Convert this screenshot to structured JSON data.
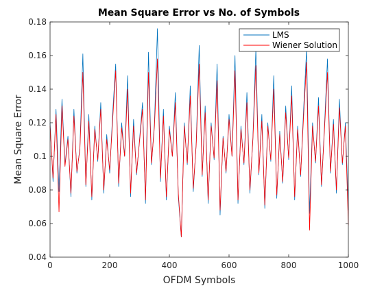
{
  "chart_data": {
    "type": "line",
    "title": "Mean Square Error vs No. of Symbols",
    "xlabel": "OFDM Symbols",
    "ylabel": "Mean Square Error",
    "xlim": [
      0,
      1000
    ],
    "ylim": [
      0.04,
      0.18
    ],
    "xticks": [
      0,
      200,
      400,
      600,
      800,
      1000
    ],
    "yticks": [
      0.04,
      0.06,
      0.08,
      0.1,
      0.12,
      0.14,
      0.16,
      0.18
    ],
    "xtick_labels": [
      "0",
      "200",
      "400",
      "600",
      "800",
      "1000"
    ],
    "ytick_labels": [
      "0.04",
      "0.06",
      "0.08",
      "0.1",
      "0.12",
      "0.14",
      "0.16",
      "0.18"
    ],
    "grid": false,
    "legend_position": "top-right",
    "series": [
      {
        "name": "LMS",
        "color": "#0072BD",
        "x": [
          0,
          10,
          20,
          30,
          40,
          50,
          60,
          70,
          80,
          90,
          100,
          110,
          120,
          130,
          140,
          150,
          160,
          170,
          180,
          190,
          200,
          210,
          220,
          230,
          240,
          250,
          260,
          270,
          280,
          290,
          300,
          310,
          320,
          330,
          340,
          350,
          360,
          370,
          380,
          390,
          400,
          410,
          420,
          430,
          440,
          450,
          460,
          470,
          480,
          490,
          500,
          510,
          520,
          530,
          540,
          550,
          560,
          570,
          580,
          590,
          600,
          610,
          620,
          630,
          640,
          650,
          660,
          670,
          680,
          690,
          700,
          710,
          720,
          730,
          740,
          750,
          760,
          770,
          780,
          790,
          800,
          810,
          820,
          830,
          840,
          850,
          860,
          870,
          880,
          890,
          900,
          910,
          920,
          930,
          940,
          950,
          960,
          970,
          980,
          990,
          1000
        ],
        "values": [
          0.12,
          0.085,
          0.128,
          0.079,
          0.134,
          0.095,
          0.112,
          0.076,
          0.128,
          0.09,
          0.105,
          0.161,
          0.082,
          0.125,
          0.074,
          0.118,
          0.097,
          0.132,
          0.078,
          0.113,
          0.09,
          0.126,
          0.155,
          0.082,
          0.12,
          0.1,
          0.148,
          0.076,
          0.122,
          0.089,
          0.11,
          0.132,
          0.072,
          0.162,
          0.095,
          0.12,
          0.176,
          0.085,
          0.128,
          0.074,
          0.118,
          0.1,
          0.138,
          0.076,
          0.052,
          0.12,
          0.095,
          0.142,
          0.079,
          0.108,
          0.166,
          0.088,
          0.13,
          0.072,
          0.12,
          0.098,
          0.155,
          0.065,
          0.112,
          0.09,
          0.125,
          0.1,
          0.16,
          0.072,
          0.118,
          0.095,
          0.138,
          0.078,
          0.111,
          0.164,
          0.089,
          0.125,
          0.069,
          0.12,
          0.097,
          0.148,
          0.075,
          0.115,
          0.084,
          0.13,
          0.098,
          0.142,
          0.074,
          0.118,
          0.088,
          0.128,
          0.164,
          0.066,
          0.12,
          0.096,
          0.135,
          0.082,
          0.118,
          0.158,
          0.09,
          0.122,
          0.078,
          0.134,
          0.095,
          0.12,
          0.068
        ]
      },
      {
        "name": "Wiener Solution",
        "color": "#FF0000",
        "x": [
          0,
          10,
          20,
          30,
          40,
          50,
          60,
          70,
          80,
          90,
          100,
          110,
          120,
          130,
          140,
          150,
          160,
          170,
          180,
          190,
          200,
          210,
          220,
          230,
          240,
          250,
          260,
          270,
          280,
          290,
          300,
          310,
          320,
          330,
          340,
          350,
          360,
          370,
          380,
          390,
          400,
          410,
          420,
          430,
          440,
          450,
          460,
          470,
          480,
          490,
          500,
          510,
          520,
          530,
          540,
          550,
          560,
          570,
          580,
          590,
          600,
          610,
          620,
          630,
          640,
          650,
          660,
          670,
          680,
          690,
          700,
          710,
          720,
          730,
          740,
          750,
          760,
          770,
          780,
          790,
          800,
          810,
          820,
          830,
          840,
          850,
          860,
          870,
          880,
          890,
          900,
          910,
          920,
          930,
          940,
          950,
          960,
          970,
          980,
          990,
          1000
        ],
        "values": [
          0.118,
          0.087,
          0.125,
          0.067,
          0.13,
          0.094,
          0.11,
          0.078,
          0.124,
          0.091,
          0.104,
          0.15,
          0.083,
          0.121,
          0.076,
          0.116,
          0.098,
          0.128,
          0.08,
          0.11,
          0.092,
          0.122,
          0.151,
          0.084,
          0.117,
          0.1,
          0.14,
          0.078,
          0.118,
          0.09,
          0.109,
          0.128,
          0.074,
          0.15,
          0.096,
          0.118,
          0.158,
          0.087,
          0.124,
          0.076,
          0.116,
          0.1,
          0.132,
          0.078,
          0.052,
          0.118,
          0.096,
          0.136,
          0.081,
          0.107,
          0.155,
          0.089,
          0.126,
          0.074,
          0.118,
          0.099,
          0.145,
          0.068,
          0.111,
          0.091,
          0.122,
          0.1,
          0.151,
          0.074,
          0.116,
          0.096,
          0.132,
          0.08,
          0.11,
          0.154,
          0.09,
          0.121,
          0.071,
          0.118,
          0.098,
          0.14,
          0.077,
          0.113,
          0.085,
          0.126,
          0.099,
          0.136,
          0.076,
          0.116,
          0.089,
          0.124,
          0.156,
          0.056,
          0.118,
          0.097,
          0.13,
          0.083,
          0.116,
          0.15,
          0.091,
          0.119,
          0.08,
          0.129,
          0.096,
          0.118,
          0.059
        ]
      }
    ]
  }
}
